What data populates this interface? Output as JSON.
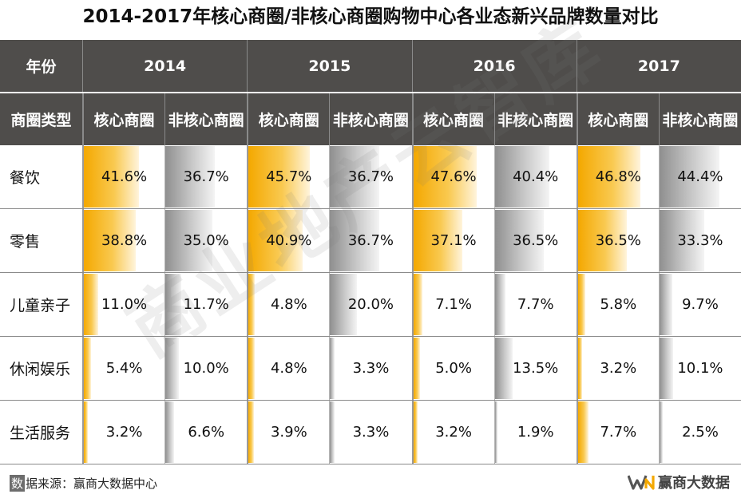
{
  "title": "2014-2017年核心商圈/非核心商圈购物中心各业态新兴品牌数量对比",
  "header": {
    "year_label": "年份",
    "type_label": "商圈类型",
    "years": [
      "2014",
      "2015",
      "2016",
      "2017"
    ],
    "core_label": "核心商圈",
    "noncore_label": "非核心商圈"
  },
  "rows": [
    {
      "category": "餐饮",
      "values": [
        {
          "text": "41.6%",
          "pct": 41.6
        },
        {
          "text": "36.7%",
          "pct": 36.7
        },
        {
          "text": "45.7%",
          "pct": 45.7
        },
        {
          "text": "36.7%",
          "pct": 36.7
        },
        {
          "text": "47.6%",
          "pct": 47.6
        },
        {
          "text": "40.4%",
          "pct": 40.4
        },
        {
          "text": "46.8%",
          "pct": 46.8
        },
        {
          "text": "44.4%",
          "pct": 44.4
        }
      ]
    },
    {
      "category": "零售",
      "values": [
        {
          "text": "38.8%",
          "pct": 38.8
        },
        {
          "text": "35.0%",
          "pct": 35.0
        },
        {
          "text": "40.9%",
          "pct": 40.9
        },
        {
          "text": "36.7%",
          "pct": 36.7
        },
        {
          "text": "37.1%",
          "pct": 37.1
        },
        {
          "text": "36.5%",
          "pct": 36.5
        },
        {
          "text": "36.5%",
          "pct": 36.5
        },
        {
          "text": "33.3%",
          "pct": 33.3
        }
      ]
    },
    {
      "category": "儿童亲子",
      "values": [
        {
          "text": "11.0%",
          "pct": 11.0
        },
        {
          "text": "11.7%",
          "pct": 11.7
        },
        {
          "text": "4.8%",
          "pct": 4.8
        },
        {
          "text": "20.0%",
          "pct": 20.0
        },
        {
          "text": "7.1%",
          "pct": 7.1
        },
        {
          "text": "7.7%",
          "pct": 7.7
        },
        {
          "text": "5.8%",
          "pct": 5.8
        },
        {
          "text": "9.7%",
          "pct": 9.7
        }
      ]
    },
    {
      "category": "休闲娱乐",
      "values": [
        {
          "text": "5.4%",
          "pct": 5.4
        },
        {
          "text": "10.0%",
          "pct": 10.0
        },
        {
          "text": "4.8%",
          "pct": 4.8
        },
        {
          "text": "3.3%",
          "pct": 3.3
        },
        {
          "text": "5.0%",
          "pct": 5.0
        },
        {
          "text": "13.5%",
          "pct": 13.5
        },
        {
          "text": "3.2%",
          "pct": 3.2
        },
        {
          "text": "10.1%",
          "pct": 10.1
        }
      ]
    },
    {
      "category": "生活服务",
      "values": [
        {
          "text": "3.2%",
          "pct": 3.2
        },
        {
          "text": "6.6%",
          "pct": 6.6
        },
        {
          "text": "3.9%",
          "pct": 3.9
        },
        {
          "text": "3.3%",
          "pct": 3.3
        },
        {
          "text": "3.2%",
          "pct": 3.2
        },
        {
          "text": "1.9%",
          "pct": 1.9
        },
        {
          "text": "7.7%",
          "pct": 7.7
        },
        {
          "text": "2.5%",
          "pct": 2.5
        }
      ]
    }
  ],
  "bar_colors": {
    "core": "#f4a800",
    "noncore": "#8f8f8f"
  },
  "watermark": "商业地产云智库",
  "footer": {
    "source_badge": "数",
    "source_text": "据来源：赢商大数据中心",
    "logo_text": "赢商大数据"
  }
}
